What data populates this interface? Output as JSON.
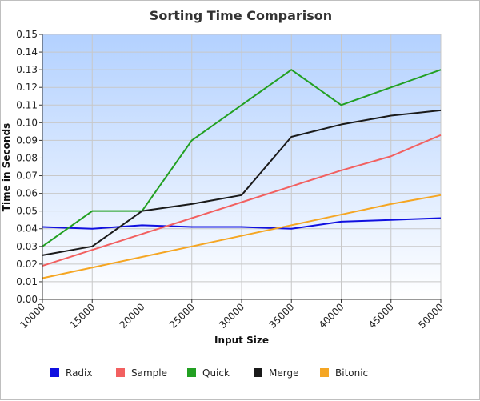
{
  "chart_data": {
    "type": "line",
    "title": "Sorting Time Comparison",
    "xlabel": "Input Size",
    "ylabel": "Time in Seconds",
    "x": [
      10000,
      15000,
      20000,
      25000,
      30000,
      35000,
      40000,
      45000,
      50000
    ],
    "xlim": [
      10000,
      50000
    ],
    "ylim": [
      0.0,
      0.15
    ],
    "y_ticks": [
      "0.00",
      "0.01",
      "0.02",
      "0.03",
      "0.04",
      "0.05",
      "0.06",
      "0.07",
      "0.08",
      "0.09",
      "0.10",
      "0.11",
      "0.12",
      "0.13",
      "0.14",
      "0.15"
    ],
    "x_ticks": [
      "10000",
      "15000",
      "20000",
      "25000",
      "30000",
      "35000",
      "40000",
      "45000",
      "50000"
    ],
    "grid": true,
    "legend_position": "bottom",
    "plot_background": [
      "#b3d1ff",
      "#ffffff"
    ],
    "series": [
      {
        "name": "Radix",
        "color": "#1010e0",
        "values": [
          0.041,
          0.04,
          0.042,
          0.041,
          0.041,
          0.04,
          0.044,
          0.045,
          0.046
        ]
      },
      {
        "name": "Sample",
        "color": "#f26060",
        "values": [
          0.019,
          0.028,
          0.037,
          0.046,
          0.055,
          0.064,
          0.073,
          0.081,
          0.093
        ]
      },
      {
        "name": "Quick",
        "color": "#22a022",
        "values": [
          0.03,
          0.05,
          0.05,
          0.09,
          0.11,
          0.13,
          0.11,
          0.12,
          0.13
        ]
      },
      {
        "name": "Merge",
        "color": "#1a1a1a",
        "values": [
          0.025,
          0.03,
          0.05,
          0.054,
          0.059,
          0.092,
          0.099,
          0.104,
          0.107
        ]
      },
      {
        "name": "Bitonic",
        "color": "#f5a623",
        "values": [
          0.012,
          0.018,
          0.024,
          0.03,
          0.036,
          0.042,
          0.048,
          0.054,
          0.059
        ]
      }
    ]
  }
}
